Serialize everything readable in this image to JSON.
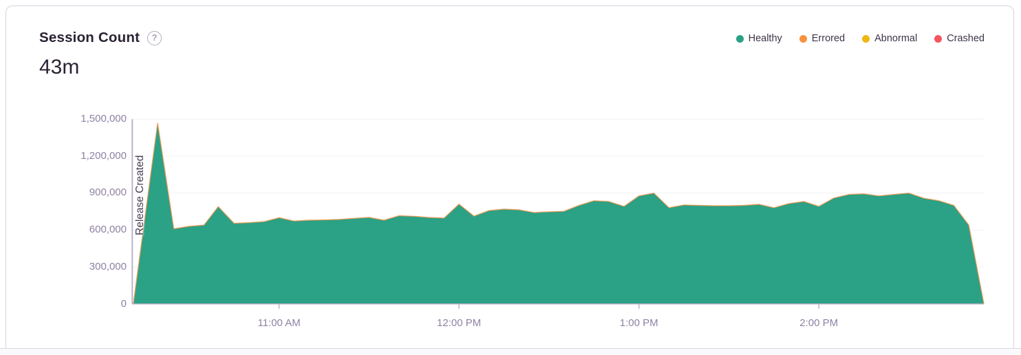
{
  "header": {
    "title": "Session Count",
    "help_icon": "?",
    "total_value": "43m"
  },
  "legend": {
    "position": "top-right",
    "items": [
      {
        "label": "Healthy",
        "color": "#2BA185"
      },
      {
        "label": "Errored",
        "color": "#F6913F"
      },
      {
        "label": "Abnormal",
        "color": "#F0B712"
      },
      {
        "label": "Crashed",
        "color": "#F4555E"
      }
    ]
  },
  "annotation": {
    "release_label": "Release Created",
    "release_time_h": 10.1833
  },
  "colors": {
    "healthy_fill": "#2BA185",
    "errored_edge": "#F0964B",
    "axis_line": "#B7ADC6",
    "gridline": "#F2F0F5",
    "tick_text": "#8F81A3",
    "title_text": "#2B2233",
    "card_border": "#D8D1DF"
  },
  "chart_data": {
    "type": "area",
    "title": "Session Count",
    "subtitle_total": "43m",
    "xlabel": "",
    "ylabel": "",
    "grid": true,
    "legend_position": "top-right",
    "ylim": [
      0,
      1500000
    ],
    "x_range_h": [
      10.1833,
      14.9167
    ],
    "x_range_label": [
      "10:11 AM",
      "2:55 PM"
    ],
    "ytick_values": [
      0,
      300000,
      600000,
      900000,
      1200000,
      1500000
    ],
    "ytick_labels": [
      "0",
      "300,000",
      "600,000",
      "900,000",
      "1,200,000",
      "1,500,000"
    ],
    "xticks": [
      {
        "label": "11:00 AM",
        "h": 11
      },
      {
        "label": "12:00 PM",
        "h": 12
      },
      {
        "label": "1:00 PM",
        "h": 13
      },
      {
        "label": "2:00 PM",
        "h": 14
      }
    ],
    "annotations": [
      {
        "type": "vertical-line",
        "label": "Release Created",
        "h": 10.1833
      }
    ],
    "series": [
      {
        "name": "Healthy",
        "color": "#2BA185",
        "points_h_v": [
          [
            10.19,
            0
          ],
          [
            10.325,
            1470000
          ],
          [
            10.415,
            610000
          ],
          [
            10.5,
            630000
          ],
          [
            10.583,
            640000
          ],
          [
            10.662,
            790000
          ],
          [
            10.75,
            655000
          ],
          [
            10.833,
            660000
          ],
          [
            10.917,
            668000
          ],
          [
            11.0,
            700000
          ],
          [
            11.083,
            673000
          ],
          [
            11.167,
            680000
          ],
          [
            11.25,
            682000
          ],
          [
            11.333,
            686000
          ],
          [
            11.417,
            695000
          ],
          [
            11.5,
            703000
          ],
          [
            11.583,
            680000
          ],
          [
            11.667,
            716000
          ],
          [
            11.75,
            712000
          ],
          [
            11.833,
            702000
          ],
          [
            11.917,
            697000
          ],
          [
            12.0,
            810000
          ],
          [
            12.083,
            713000
          ],
          [
            12.167,
            758000
          ],
          [
            12.25,
            770000
          ],
          [
            12.333,
            764000
          ],
          [
            12.417,
            742000
          ],
          [
            12.5,
            748000
          ],
          [
            12.583,
            752000
          ],
          [
            12.667,
            800000
          ],
          [
            12.75,
            838000
          ],
          [
            12.833,
            832000
          ],
          [
            12.917,
            792000
          ],
          [
            13.0,
            877000
          ],
          [
            13.083,
            900000
          ],
          [
            13.167,
            781000
          ],
          [
            13.25,
            804000
          ],
          [
            13.333,
            800000
          ],
          [
            13.417,
            797000
          ],
          [
            13.5,
            797000
          ],
          [
            13.583,
            800000
          ],
          [
            13.667,
            809000
          ],
          [
            13.75,
            781000
          ],
          [
            13.833,
            815000
          ],
          [
            13.917,
            832000
          ],
          [
            14.0,
            792000
          ],
          [
            14.083,
            860000
          ],
          [
            14.167,
            889000
          ],
          [
            14.25,
            894000
          ],
          [
            14.333,
            877000
          ],
          [
            14.417,
            889000
          ],
          [
            14.5,
            900000
          ],
          [
            14.583,
            858000
          ],
          [
            14.667,
            838000
          ],
          [
            14.75,
            800000
          ],
          [
            14.833,
            640000
          ],
          [
            14.917,
            0
          ]
        ]
      },
      {
        "name": "Errored",
        "note": "thin sliver stacked on top edge, visible as orange line"
      },
      {
        "name": "Abnormal",
        "note": "≈0, not visibly distinct"
      },
      {
        "name": "Crashed",
        "note": "≈0, not visibly distinct"
      }
    ]
  }
}
